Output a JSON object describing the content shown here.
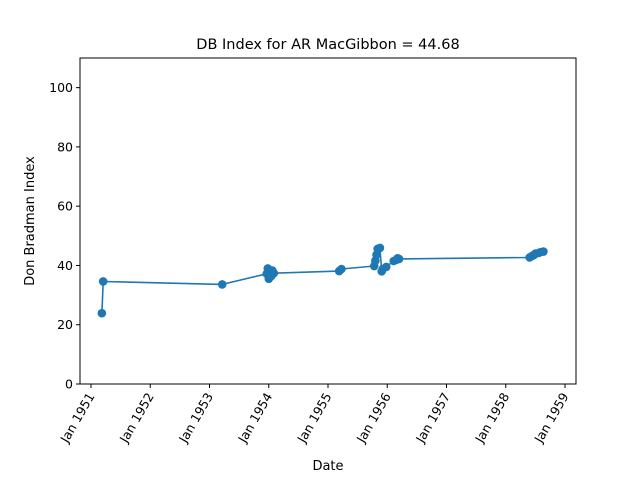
{
  "chart_data": {
    "type": "line",
    "title": "DB Index for AR MacGibbon = 44.68",
    "xlabel": "Date",
    "ylabel": "Don Bradman Index",
    "xlim": [
      "1951-01-01",
      "1959-01-01"
    ],
    "ylim": [
      0,
      110
    ],
    "x_ticks": [
      "Jan 1951",
      "Jan 1952",
      "Jan 1953",
      "Jan 1954",
      "Jan 1955",
      "Jan 1956",
      "Jan 1957",
      "Jan 1958",
      "Jan 1959"
    ],
    "y_ticks": [
      0,
      20,
      40,
      60,
      80,
      100
    ],
    "grid": false,
    "marker": "circle",
    "color": "#1f77b4",
    "points": [
      {
        "x": "1951-03-09",
        "y": 23.9
      },
      {
        "x": "1951-03-17",
        "y": 34.6
      },
      {
        "x": "1953-03-20",
        "y": 33.6
      },
      {
        "x": "1953-12-19",
        "y": 37.2
      },
      {
        "x": "1953-12-26",
        "y": 39.0
      },
      {
        "x": "1954-01-01",
        "y": 35.5
      },
      {
        "x": "1954-01-09",
        "y": 37.0
      },
      {
        "x": "1954-01-16",
        "y": 36.4
      },
      {
        "x": "1954-01-23",
        "y": 38.3
      },
      {
        "x": "1954-02-01",
        "y": 37.4
      },
      {
        "x": "1955-03-11",
        "y": 38.1
      },
      {
        "x": "1955-03-25",
        "y": 38.8
      },
      {
        "x": "1955-10-13",
        "y": 39.8
      },
      {
        "x": "1955-10-20",
        "y": 41.6
      },
      {
        "x": "1955-10-27",
        "y": 43.6
      },
      {
        "x": "1955-11-03",
        "y": 45.6
      },
      {
        "x": "1955-11-17",
        "y": 45.9
      },
      {
        "x": "1955-11-28",
        "y": 38.0
      },
      {
        "x": "1955-12-05",
        "y": 38.8
      },
      {
        "x": "1955-12-26",
        "y": 39.5
      },
      {
        "x": "1956-02-10",
        "y": 41.5
      },
      {
        "x": "1956-02-26",
        "y": 41.9
      },
      {
        "x": "1956-03-05",
        "y": 42.4
      },
      {
        "x": "1956-03-14",
        "y": 42.2
      },
      {
        "x": "1958-05-28",
        "y": 42.7
      },
      {
        "x": "1958-06-12",
        "y": 43.2
      },
      {
        "x": "1958-06-25",
        "y": 43.6
      },
      {
        "x": "1958-07-03",
        "y": 44.0
      },
      {
        "x": "1958-07-22",
        "y": 44.2
      },
      {
        "x": "1958-08-03",
        "y": 44.5
      },
      {
        "x": "1958-08-21",
        "y": 44.7
      }
    ]
  }
}
